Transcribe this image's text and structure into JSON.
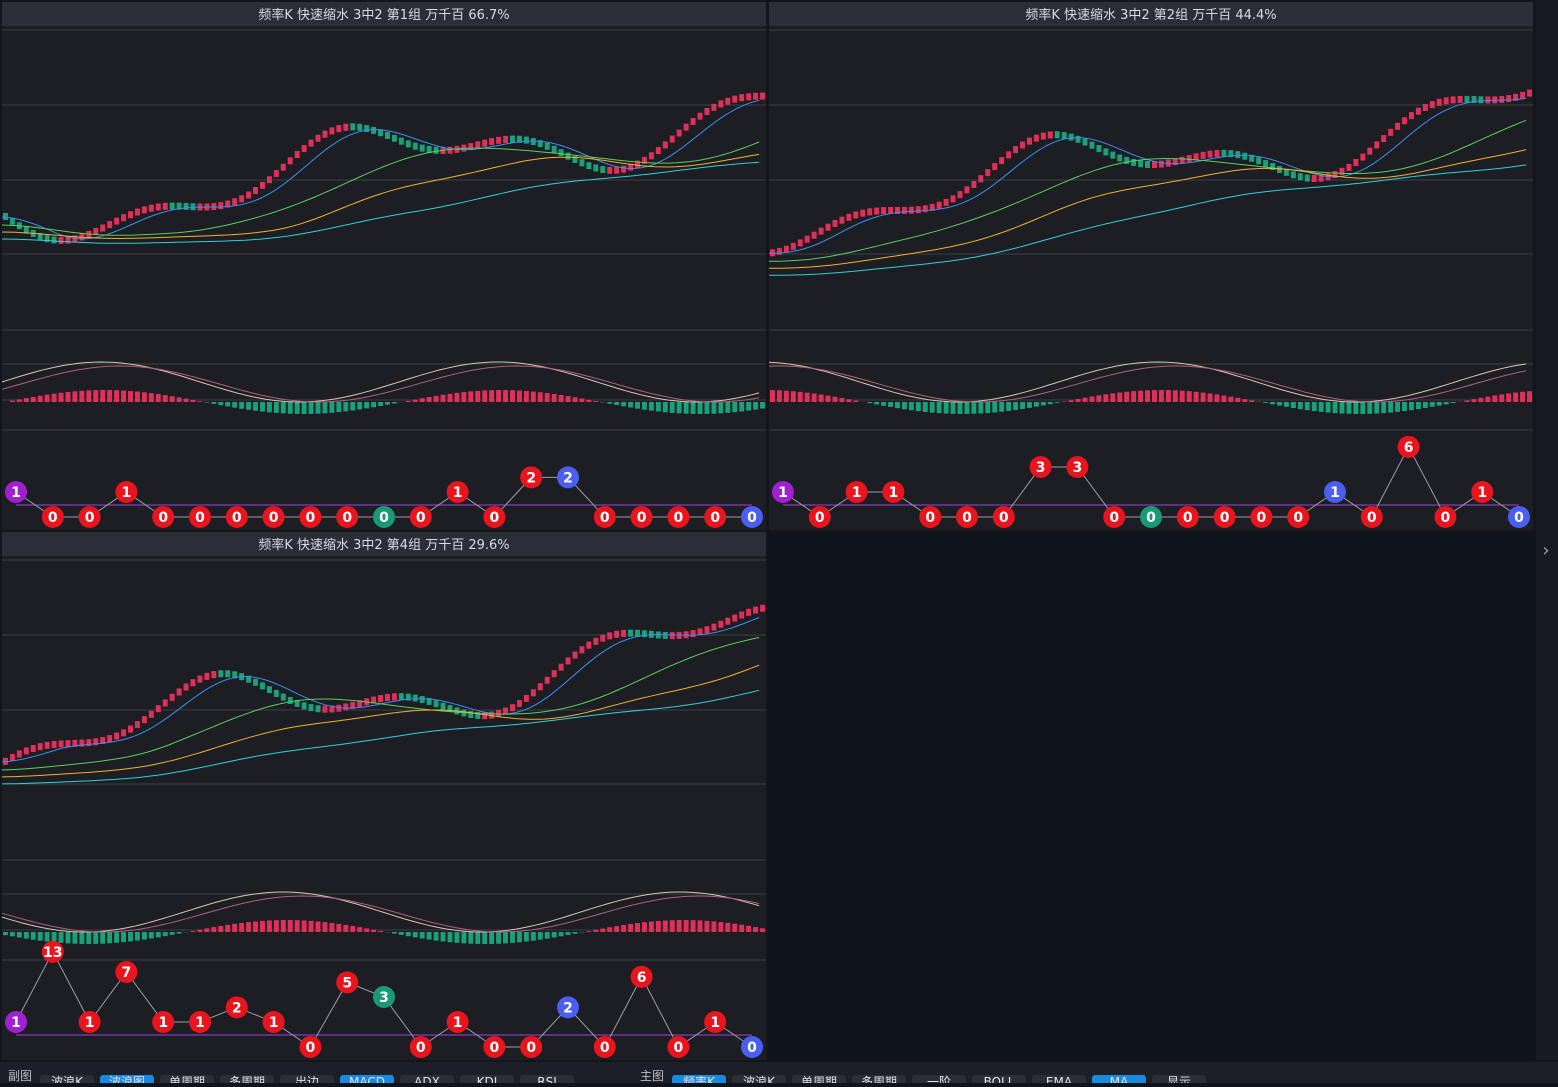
{
  "panels": [
    {
      "title": "频率K  快速缩水  3中2 第1组  万千百  66.7%",
      "markers": [
        {
          "value": 1,
          "color": "#a020d0"
        },
        {
          "value": 0,
          "color": "#e8141e"
        },
        {
          "value": 0,
          "color": "#e8141e"
        },
        {
          "value": 1,
          "color": "#e8141e"
        },
        {
          "value": 0,
          "color": "#e8141e"
        },
        {
          "value": 0,
          "color": "#e8141e"
        },
        {
          "value": 0,
          "color": "#e8141e"
        },
        {
          "value": 0,
          "color": "#e8141e"
        },
        {
          "value": 0,
          "color": "#e8141e"
        },
        {
          "value": 0,
          "color": "#e8141e"
        },
        {
          "value": 0,
          "color": "#1a9a74"
        },
        {
          "value": 0,
          "color": "#e8141e"
        },
        {
          "value": 1,
          "color": "#e8141e"
        },
        {
          "value": 0,
          "color": "#e8141e"
        },
        {
          "value": 2,
          "color": "#e8141e"
        },
        {
          "value": 2,
          "color": "#4a5ef0"
        },
        {
          "value": 0,
          "color": "#e8141e"
        },
        {
          "value": 0,
          "color": "#e8141e"
        },
        {
          "value": 0,
          "color": "#e8141e"
        },
        {
          "value": 0,
          "color": "#e8141e"
        },
        {
          "value": 0,
          "color": "#4a5ef0"
        }
      ]
    },
    {
      "title": "频率K  快速缩水  3中2 第2组  万千百  44.4%",
      "markers": [
        {
          "value": 1,
          "color": "#a020d0"
        },
        {
          "value": 0,
          "color": "#e8141e"
        },
        {
          "value": 1,
          "color": "#e8141e"
        },
        {
          "value": 1,
          "color": "#e8141e"
        },
        {
          "value": 0,
          "color": "#e8141e"
        },
        {
          "value": 0,
          "color": "#e8141e"
        },
        {
          "value": 0,
          "color": "#e8141e"
        },
        {
          "value": 3,
          "color": "#e8141e"
        },
        {
          "value": 3,
          "color": "#e8141e"
        },
        {
          "value": 0,
          "color": "#e8141e"
        },
        {
          "value": 0,
          "color": "#1a9a74"
        },
        {
          "value": 0,
          "color": "#e8141e"
        },
        {
          "value": 0,
          "color": "#e8141e"
        },
        {
          "value": 0,
          "color": "#e8141e"
        },
        {
          "value": 0,
          "color": "#e8141e"
        },
        {
          "value": 1,
          "color": "#4a5ef0"
        },
        {
          "value": 0,
          "color": "#e8141e"
        },
        {
          "value": 6,
          "color": "#e8141e"
        },
        {
          "value": 0,
          "color": "#e8141e"
        },
        {
          "value": 1,
          "color": "#e8141e"
        },
        {
          "value": 0,
          "color": "#4a5ef0"
        }
      ]
    },
    {
      "title": "频率K  快速缩水  3中2 第4组  万千百  29.6%",
      "markers": [
        {
          "value": 1,
          "color": "#a020d0"
        },
        {
          "value": 13,
          "color": "#e8141e"
        },
        {
          "value": 1,
          "color": "#e8141e"
        },
        {
          "value": 7,
          "color": "#e8141e"
        },
        {
          "value": 1,
          "color": "#e8141e"
        },
        {
          "value": 1,
          "color": "#e8141e"
        },
        {
          "value": 2,
          "color": "#e8141e"
        },
        {
          "value": 1,
          "color": "#e8141e"
        },
        {
          "value": 0,
          "color": "#e8141e"
        },
        {
          "value": 5,
          "color": "#e8141e"
        },
        {
          "value": 3,
          "color": "#1a9a74"
        },
        {
          "value": 0,
          "color": "#e8141e"
        },
        {
          "value": 1,
          "color": "#e8141e"
        },
        {
          "value": 0,
          "color": "#e8141e"
        },
        {
          "value": 0,
          "color": "#e8141e"
        },
        {
          "value": 2,
          "color": "#4a5ef0"
        },
        {
          "value": 0,
          "color": "#e8141e"
        },
        {
          "value": 6,
          "color": "#e8141e"
        },
        {
          "value": 0,
          "color": "#e8141e"
        },
        {
          "value": 1,
          "color": "#e8141e"
        },
        {
          "value": 0,
          "color": "#4a5ef0"
        }
      ]
    }
  ],
  "toolbar": [
    {
      "label": "副图",
      "kind": "caption"
    },
    {
      "label": "波浪K"
    },
    {
      "label": "波浪图",
      "active": true
    },
    {
      "label": "单周期"
    },
    {
      "label": "多周期"
    },
    {
      "label": "出边"
    },
    {
      "label": "MACD",
      "active": true
    },
    {
      "label": "ADX"
    },
    {
      "label": "KDJ"
    },
    {
      "label": "RSI"
    },
    {
      "label": "主图",
      "kind": "caption"
    },
    {
      "label": "频率K",
      "active": true
    },
    {
      "label": "波浪K"
    },
    {
      "label": "单周期"
    },
    {
      "label": "多周期"
    },
    {
      "label": "一阶"
    },
    {
      "label": "BOLL"
    },
    {
      "label": "EMA"
    },
    {
      "label": "MA",
      "active": true
    },
    {
      "label": "显示"
    }
  ]
}
